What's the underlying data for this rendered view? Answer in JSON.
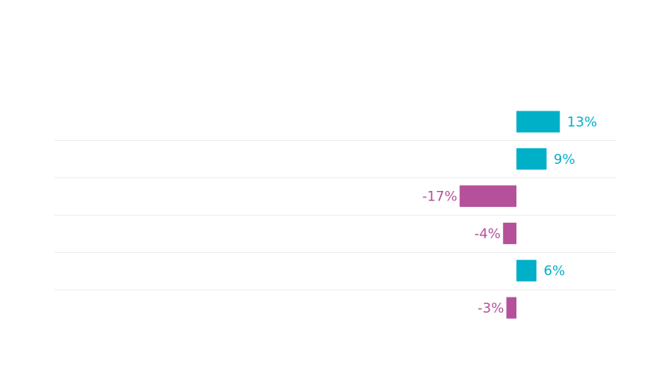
{
  "chart_data": {
    "type": "bar",
    "orientation": "horizontal",
    "categories": [
      "",
      "",
      "",
      "",
      "",
      ""
    ],
    "values": [
      13,
      9,
      -17,
      -4,
      6,
      -3
    ],
    "value_labels": [
      "13%",
      "9%",
      "-17%",
      "-4%",
      "6%",
      "-3%"
    ],
    "unit": "%",
    "title": "",
    "xlabel": "",
    "ylabel": "",
    "grid": false,
    "row_separators": true,
    "colors": {
      "positive": "#00AFC8",
      "negative": "#B5509A",
      "separator": "#EEEEEE"
    }
  }
}
